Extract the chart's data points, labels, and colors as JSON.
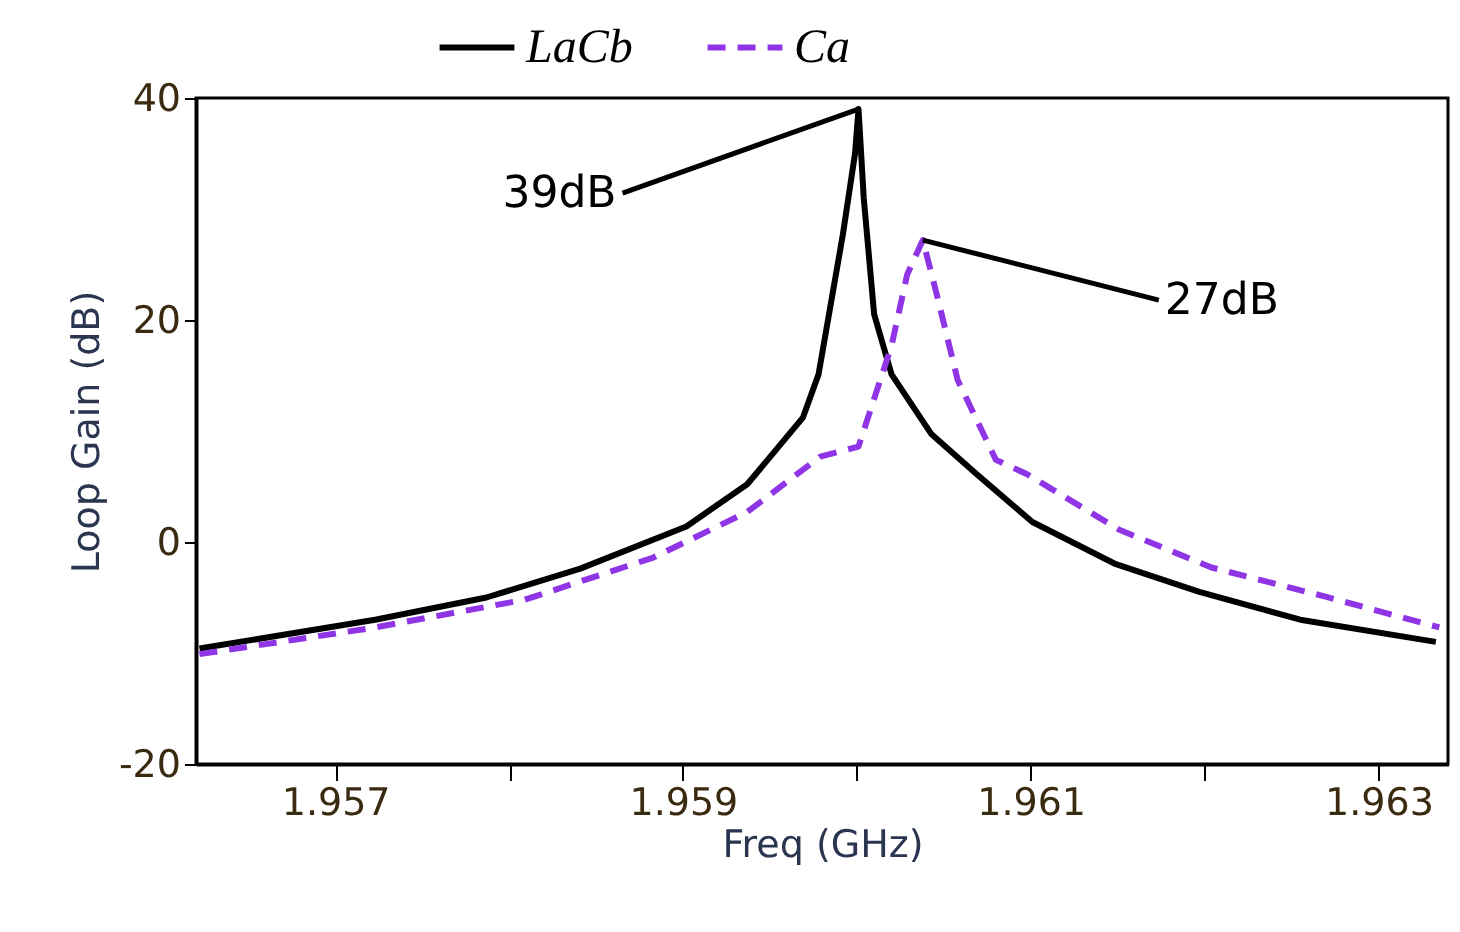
{
  "chart_data": {
    "type": "line",
    "xlabel": "Freq (GHz)",
    "ylabel": "Loop Gain (dB)",
    "xlim": [
      1.9562,
      1.9634
    ],
    "ylim": [
      -20,
      40
    ],
    "xticks": [
      1.957,
      {
        "value": 1.958,
        "label": null
      },
      1.959,
      {
        "value": 1.96,
        "label": null
      },
      1.961,
      {
        "value": 1.962,
        "label": null
      },
      1.963
    ],
    "yticks": [
      -20,
      0,
      20,
      40
    ],
    "grid": false,
    "legend": "top left",
    "marker": "none",
    "series": [
      {
        "name": "LaCb",
        "color": "#000000",
        "line_style": "solid",
        "x": [
          1.95622,
          1.95723,
          1.95787,
          1.95841,
          1.95902,
          1.95937,
          1.95969,
          1.95978,
          1.95992,
          1.95999,
          1.96001,
          1.96004,
          1.9601,
          1.9602,
          1.96043,
          1.96069,
          1.96101,
          1.96149,
          1.96197,
          1.96255,
          1.96333
        ],
        "values": [
          -9.6,
          -7.0,
          -5.0,
          -2.4,
          1.4,
          5.2,
          11.2,
          15.1,
          27.7,
          35,
          39,
          31,
          20.5,
          15.1,
          9.7,
          6.1,
          1.8,
          -2.0,
          -4.5,
          -7.0,
          -9.0
        ]
      },
      {
        "name": "Ca",
        "color": "#8f35e6",
        "line_style": "dashed",
        "x": [
          1.95622,
          1.95723,
          1.95809,
          1.95883,
          1.95937,
          1.95979,
          1.96001,
          1.9602,
          1.96029,
          1.96038,
          1.96046,
          1.96058,
          1.9608,
          1.96098,
          1.96151,
          1.96204,
          1.96269,
          1.96335
        ],
        "values": [
          -10.1,
          -7.7,
          -5.2,
          -1.4,
          2.7,
          7.7,
          8.6,
          17.7,
          24.1,
          27.2,
          22.3,
          14.6,
          7.4,
          6.1,
          1.1,
          -2.3,
          -4.9,
          -7.7
        ]
      }
    ],
    "annotations": [
      {
        "text": "39dB",
        "x": 1.96001,
        "y": 39
      },
      {
        "text": "27dB",
        "x": 1.96038,
        "y": 27.2
      }
    ]
  }
}
